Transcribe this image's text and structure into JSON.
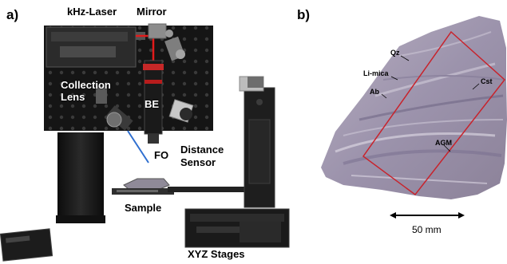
{
  "panel_a": {
    "letter": "a)",
    "labels": {
      "laser": "kHz-Laser",
      "mirror": "Mirror",
      "collection_lens": "Collection\nLens",
      "be": "BE",
      "fo": "FO",
      "distance_sensor": "Distance\nSensor",
      "sample": "Sample",
      "stages": "XYZ Stages"
    }
  },
  "panel_b": {
    "letter": "b)",
    "labels": {
      "qz": "Qz",
      "li_mica": "Li-mica",
      "ab": "Ab",
      "cst": "Cst",
      "agm": "AGM"
    },
    "scale_bar": "50 mm"
  },
  "colors": {
    "laser_beam": "#e21b1b",
    "fiber": "#2f6fd0",
    "roi_box": "#c8232c",
    "rock_base": "#9a90a8"
  }
}
